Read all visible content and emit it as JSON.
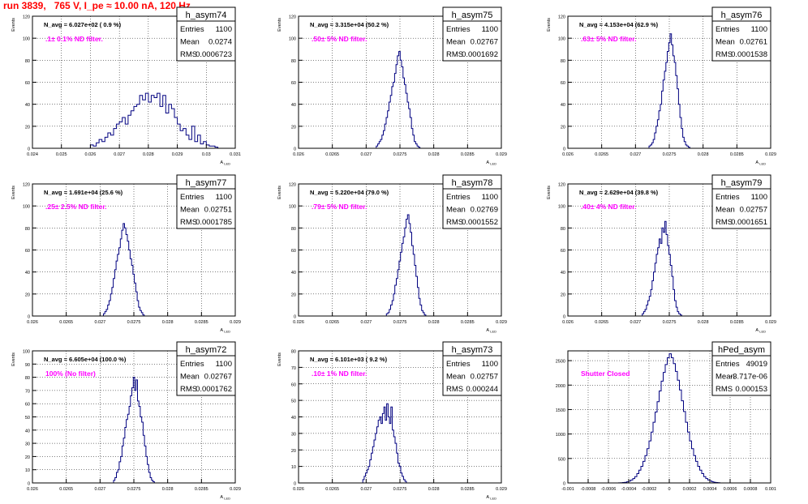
{
  "run_title": "run 3839,   765 V, I_pe ≈ 10.00 nA, 120 Hz",
  "colors": {
    "title": "#ff0000",
    "filter_label": "#ff00ff",
    "hist_line": "#000080",
    "frame": "#000000",
    "grid": "#000000"
  },
  "chart_data": [
    {
      "type": "histogram",
      "name": "h_asym74",
      "entries": "1100",
      "mean": "0.0274",
      "rms": "0.0006723",
      "navg": "N_avg = 6.027e+02 ( 0.9 %)",
      "filter": ".1± 0.1% ND filter.",
      "ylabel": "Events",
      "xlabel": "A_LED",
      "xlim": [
        0.024,
        0.031
      ],
      "ylim": [
        0,
        120
      ],
      "yticks": [
        0,
        20,
        40,
        60,
        80,
        100,
        120
      ],
      "xticks": [
        0.024,
        0.025,
        0.026,
        0.027,
        0.028,
        0.029,
        0.03,
        0.031
      ],
      "xtick_labels": [
        "0.024",
        "0.025",
        "0.026",
        "0.027",
        "0.028",
        "0.029",
        "0.03",
        "0.031"
      ],
      "bin_lo": 0.026,
      "bin_w": 0.0001,
      "counts": [
        3,
        2,
        5,
        8,
        6,
        10,
        14,
        12,
        18,
        22,
        24,
        28,
        22,
        30,
        34,
        38,
        40,
        48,
        44,
        50,
        42,
        48,
        46,
        50,
        38,
        48,
        32,
        40,
        36,
        28,
        22,
        16,
        18,
        12,
        8,
        20,
        6,
        12,
        4,
        6,
        3,
        2,
        2,
        1
      ]
    },
    {
      "type": "histogram",
      "name": "h_asym75",
      "entries": "1100",
      "mean": "0.02767",
      "rms": "0.0001692",
      "navg": "N_avg = 3.315e+04 (50.2 %)",
      "filter": ".50± 5% ND filter.",
      "ylabel": "Events",
      "xlabel": "A_LED",
      "xlim": [
        0.026,
        0.029
      ],
      "ylim": [
        0,
        120
      ],
      "yticks": [
        0,
        20,
        40,
        60,
        80,
        100,
        120
      ],
      "xticks": [
        0.026,
        0.0265,
        0.027,
        0.0275,
        0.028,
        0.0285,
        0.029
      ],
      "xtick_labels": [
        "0.026",
        "0.0265",
        "0.027",
        "0.0275",
        "0.028",
        "0.0285",
        "0.029"
      ],
      "bin_lo": 0.02715,
      "bin_w": 2.08e-05,
      "counts": [
        2,
        4,
        6,
        8,
        12,
        16,
        22,
        28,
        34,
        42,
        48,
        56,
        60,
        68,
        76,
        84,
        88,
        80,
        74,
        64,
        58,
        50,
        42,
        36,
        28,
        18,
        12,
        6,
        4,
        2,
        1
      ]
    },
    {
      "type": "histogram",
      "name": "h_asym76",
      "entries": "1100",
      "mean": "0.02761",
      "rms": "0.0001538",
      "navg": "N_avg = 4.153e+04 (62.9 %)",
      "filter": ".63± 5% ND filter.",
      "ylabel": "Events",
      "xlabel": "A_LED",
      "xlim": [
        0.026,
        0.029
      ],
      "ylim": [
        0,
        120
      ],
      "yticks": [
        0,
        20,
        40,
        60,
        80,
        100,
        120
      ],
      "xticks": [
        0.026,
        0.0265,
        0.027,
        0.0275,
        0.028,
        0.0285,
        0.029
      ],
      "xtick_labels": [
        "0.026",
        "0.0265",
        "0.027",
        "0.0275",
        "0.028",
        "0.0285",
        "0.029"
      ],
      "bin_lo": 0.0272,
      "bin_w": 2.08e-05,
      "counts": [
        2,
        3,
        5,
        8,
        14,
        20,
        26,
        34,
        40,
        52,
        62,
        70,
        78,
        88,
        96,
        104,
        94,
        84,
        78,
        66,
        54,
        40,
        28,
        18,
        10,
        6,
        3,
        2,
        1
      ]
    },
    {
      "type": "histogram",
      "name": "h_asym77",
      "entries": "1100",
      "mean": "0.02751",
      "rms": "0.0001785",
      "navg": "N_avg = 1.691e+04 (25.6 %)",
      "filter": ".25± 2.5% ND filter.",
      "ylabel": "Events",
      "xlabel": "A_LED",
      "xlim": [
        0.026,
        0.029
      ],
      "ylim": [
        0,
        120
      ],
      "yticks": [
        0,
        20,
        40,
        60,
        80,
        100,
        120
      ],
      "xticks": [
        0.026,
        0.0265,
        0.027,
        0.0275,
        0.028,
        0.0285,
        0.029
      ],
      "xtick_labels": [
        "0.026",
        "0.0265",
        "0.027",
        "0.0275",
        "0.028",
        "0.0285",
        "0.029"
      ],
      "bin_lo": 0.02705,
      "bin_w": 2.08e-05,
      "counts": [
        2,
        4,
        6,
        10,
        14,
        20,
        26,
        34,
        42,
        50,
        56,
        62,
        70,
        78,
        84,
        80,
        74,
        68,
        60,
        52,
        46,
        38,
        30,
        22,
        14,
        8,
        5,
        3,
        1
      ]
    },
    {
      "type": "histogram",
      "name": "h_asym78",
      "entries": "1100",
      "mean": "0.02769",
      "rms": "0.0001552",
      "navg": "N_avg = 5.220e+04 (79.0 %)",
      "filter": ".79± 5% ND filter.",
      "ylabel": "Events",
      "xlabel": "A_LED",
      "xlim": [
        0.026,
        0.029
      ],
      "ylim": [
        0,
        120
      ],
      "yticks": [
        0,
        20,
        40,
        60,
        80,
        100,
        120
      ],
      "xticks": [
        0.026,
        0.0265,
        0.027,
        0.0275,
        0.028,
        0.0285,
        0.029
      ],
      "xtick_labels": [
        "0.026",
        "0.0265",
        "0.027",
        "0.0275",
        "0.028",
        "0.0285",
        "0.029"
      ],
      "bin_lo": 0.0273,
      "bin_w": 2.08e-05,
      "counts": [
        2,
        3,
        6,
        10,
        14,
        20,
        28,
        34,
        42,
        50,
        58,
        66,
        72,
        80,
        88,
        92,
        84,
        76,
        64,
        56,
        46,
        36,
        26,
        16,
        10,
        5,
        3,
        1
      ]
    },
    {
      "type": "histogram",
      "name": "h_asym79",
      "entries": "1100",
      "mean": "0.02757",
      "rms": "0.0001651",
      "navg": "N_avg = 2.629e+04 (39.8 %)",
      "filter": ".40± 4% ND filter.",
      "ylabel": "Events",
      "xlabel": "A_LED",
      "xlim": [
        0.026,
        0.029
      ],
      "ylim": [
        0,
        120
      ],
      "yticks": [
        0,
        20,
        40,
        60,
        80,
        100,
        120
      ],
      "xticks": [
        0.026,
        0.0265,
        0.027,
        0.0275,
        0.028,
        0.0285,
        0.029
      ],
      "xtick_labels": [
        "0.026",
        "0.0265",
        "0.027",
        "0.0275",
        "0.028",
        "0.0285",
        "0.029"
      ],
      "bin_lo": 0.0271,
      "bin_w": 2.08e-05,
      "counts": [
        2,
        4,
        6,
        10,
        14,
        18,
        24,
        32,
        40,
        48,
        56,
        62,
        70,
        66,
        80,
        76,
        86,
        74,
        64,
        56,
        46,
        36,
        24,
        14,
        8,
        4,
        2,
        1
      ]
    },
    {
      "type": "histogram",
      "name": "h_asym72",
      "entries": "1100",
      "mean": "0.02767",
      "rms": "0.0001762",
      "navg": "N_avg = 6.605e+04 (100.0 %)",
      "filter": "100% (No filter)",
      "ylabel": "Events",
      "xlabel": "A_LED",
      "xlim": [
        0.026,
        0.029
      ],
      "ylim": [
        0,
        100
      ],
      "yticks": [
        0,
        10,
        20,
        30,
        40,
        50,
        60,
        70,
        80,
        90,
        100
      ],
      "xticks": [
        0.026,
        0.0265,
        0.027,
        0.0275,
        0.028,
        0.0285,
        0.029
      ],
      "xtick_labels": [
        "0.026",
        "0.0265",
        "0.027",
        "0.0275",
        "0.028",
        "0.0285",
        "0.029"
      ],
      "bin_lo": 0.0272,
      "bin_w": 2.08e-05,
      "counts": [
        2,
        4,
        8,
        10,
        16,
        20,
        28,
        34,
        42,
        48,
        52,
        58,
        66,
        72,
        80,
        70,
        78,
        62,
        58,
        50,
        46,
        36,
        28,
        20,
        14,
        8,
        4,
        2,
        1
      ]
    },
    {
      "type": "histogram",
      "name": "h_asym73",
      "entries": "1100",
      "mean": "0.02757",
      "rms": "0.000244",
      "navg": "N_avg = 6.101e+03 ( 9.2 %)",
      "filter": ".10± 1% ND filter.",
      "ylabel": "Events",
      "xlabel": "A_LED",
      "xlim": [
        0.026,
        0.029
      ],
      "ylim": [
        0,
        80
      ],
      "yticks": [
        0,
        10,
        20,
        30,
        40,
        50,
        60,
        70,
        80
      ],
      "xticks": [
        0.026,
        0.0265,
        0.027,
        0.0275,
        0.028,
        0.0285,
        0.029
      ],
      "xtick_labels": [
        "0.026",
        "0.0265",
        "0.027",
        "0.0275",
        "0.028",
        "0.0285",
        "0.029"
      ],
      "bin_lo": 0.02695,
      "bin_w": 2.08e-05,
      "counts": [
        2,
        4,
        6,
        8,
        10,
        14,
        18,
        22,
        26,
        30,
        34,
        38,
        40,
        36,
        42,
        46,
        38,
        48,
        40,
        36,
        46,
        32,
        28,
        24,
        18,
        12,
        10,
        6,
        4,
        2,
        1
      ]
    },
    {
      "type": "histogram",
      "name": "hPed_asym",
      "entries": "49019",
      "mean": "-3.717e-06",
      "rms": "0.000153",
      "navg": "",
      "filter": "Shutter Closed",
      "ylabel": "",
      "xlabel": "",
      "xlim": [
        -0.001,
        0.001
      ],
      "ylim": [
        0,
        2700
      ],
      "yticks": [
        0,
        500,
        1000,
        1500,
        2000,
        2500
      ],
      "xticks": [
        -0.001,
        -0.0008,
        -0.0006,
        -0.0004,
        -0.0002,
        0,
        0.0002,
        0.0004,
        0.0006,
        0.0008,
        0.001
      ],
      "xtick_labels": [
        "-0.001",
        "-0.0008",
        "-0.0006",
        "-0.0004",
        "-0.0002",
        "0",
        "0.0002",
        "0.0004",
        "0.0006",
        "0.0008",
        "0.001"
      ],
      "bin_lo": -0.0005,
      "bin_w": 2e-05,
      "counts": [
        2,
        4,
        8,
        14,
        24,
        40,
        60,
        90,
        130,
        190,
        260,
        340,
        440,
        560,
        700,
        860,
        1040,
        1240,
        1450,
        1660,
        1880,
        2080,
        2260,
        2420,
        2560,
        2640,
        2560,
        2440,
        2280,
        2100,
        1900,
        1680,
        1460,
        1240,
        1040,
        860,
        700,
        560,
        440,
        340,
        260,
        190,
        130,
        90,
        60,
        40,
        24,
        14,
        8,
        4
      ]
    }
  ]
}
